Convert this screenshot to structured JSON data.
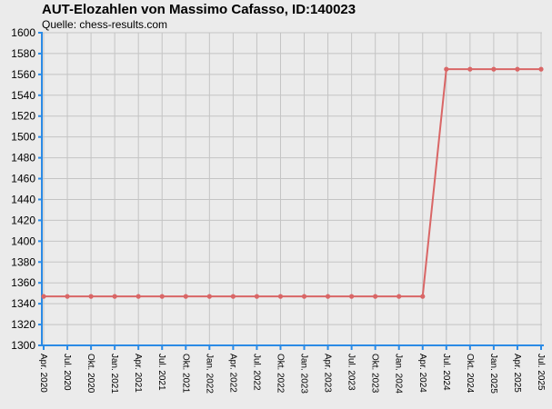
{
  "chart_data": {
    "type": "line",
    "title": "AUT-Elozahlen von Massimo Cafasso, ID:140023",
    "subtitle": "Quelle: chess-results.com",
    "xlabel": "",
    "ylabel": "",
    "ylim": [
      1300,
      1600
    ],
    "yticks": [
      1300,
      1320,
      1340,
      1360,
      1380,
      1400,
      1420,
      1440,
      1460,
      1480,
      1500,
      1520,
      1540,
      1560,
      1580,
      1600
    ],
    "categories": [
      "Apr. 2020",
      "Jul. 2020",
      "Okt. 2020",
      "Jan. 2021",
      "Apr. 2021",
      "Jul. 2021",
      "Okt. 2021",
      "Jan. 2022",
      "Apr. 2022",
      "Jul. 2022",
      "Okt. 2022",
      "Jan. 2023",
      "Apr. 2023",
      "Jul. 2023",
      "Okt. 2023",
      "Jan. 2024",
      "Apr. 2024",
      "Jul. 2024",
      "Okt. 2024",
      "Jan. 2025",
      "Apr. 2025",
      "Jul. 2025"
    ],
    "series": [
      {
        "values": [
          1347,
          1347,
          1347,
          1347,
          1347,
          1347,
          1347,
          1347,
          1347,
          1347,
          1347,
          1347,
          1347,
          1347,
          1347,
          1347,
          1347,
          1565,
          1565,
          1565,
          1565,
          1565
        ]
      }
    ],
    "grid": true,
    "colors": {
      "line": "#d96666",
      "marker": "#d96666",
      "axis": "#2b8be6",
      "grid": "#c4c4c4",
      "plot_bg": "#ebebeb"
    }
  }
}
